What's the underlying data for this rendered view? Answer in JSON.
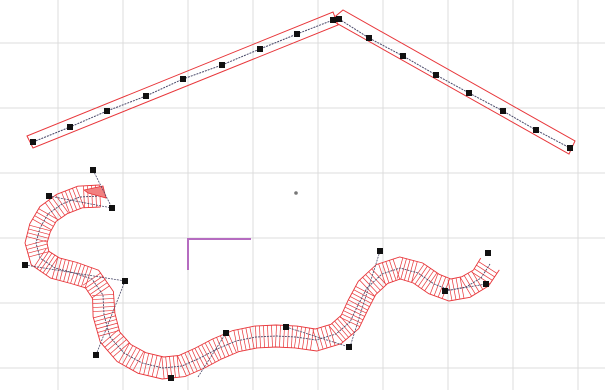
{
  "colors": {
    "background": "#ffffff",
    "grid": "#dcdcdc",
    "outline": "#e8363a",
    "path": "#4a4a6a",
    "handle": "#111111",
    "marker": "#b56cc0",
    "origin": "#777777"
  },
  "icons": {
    "control_point": "black-square-handle",
    "origin": "center-dot",
    "axis_marker": "corner-bracket"
  }
}
